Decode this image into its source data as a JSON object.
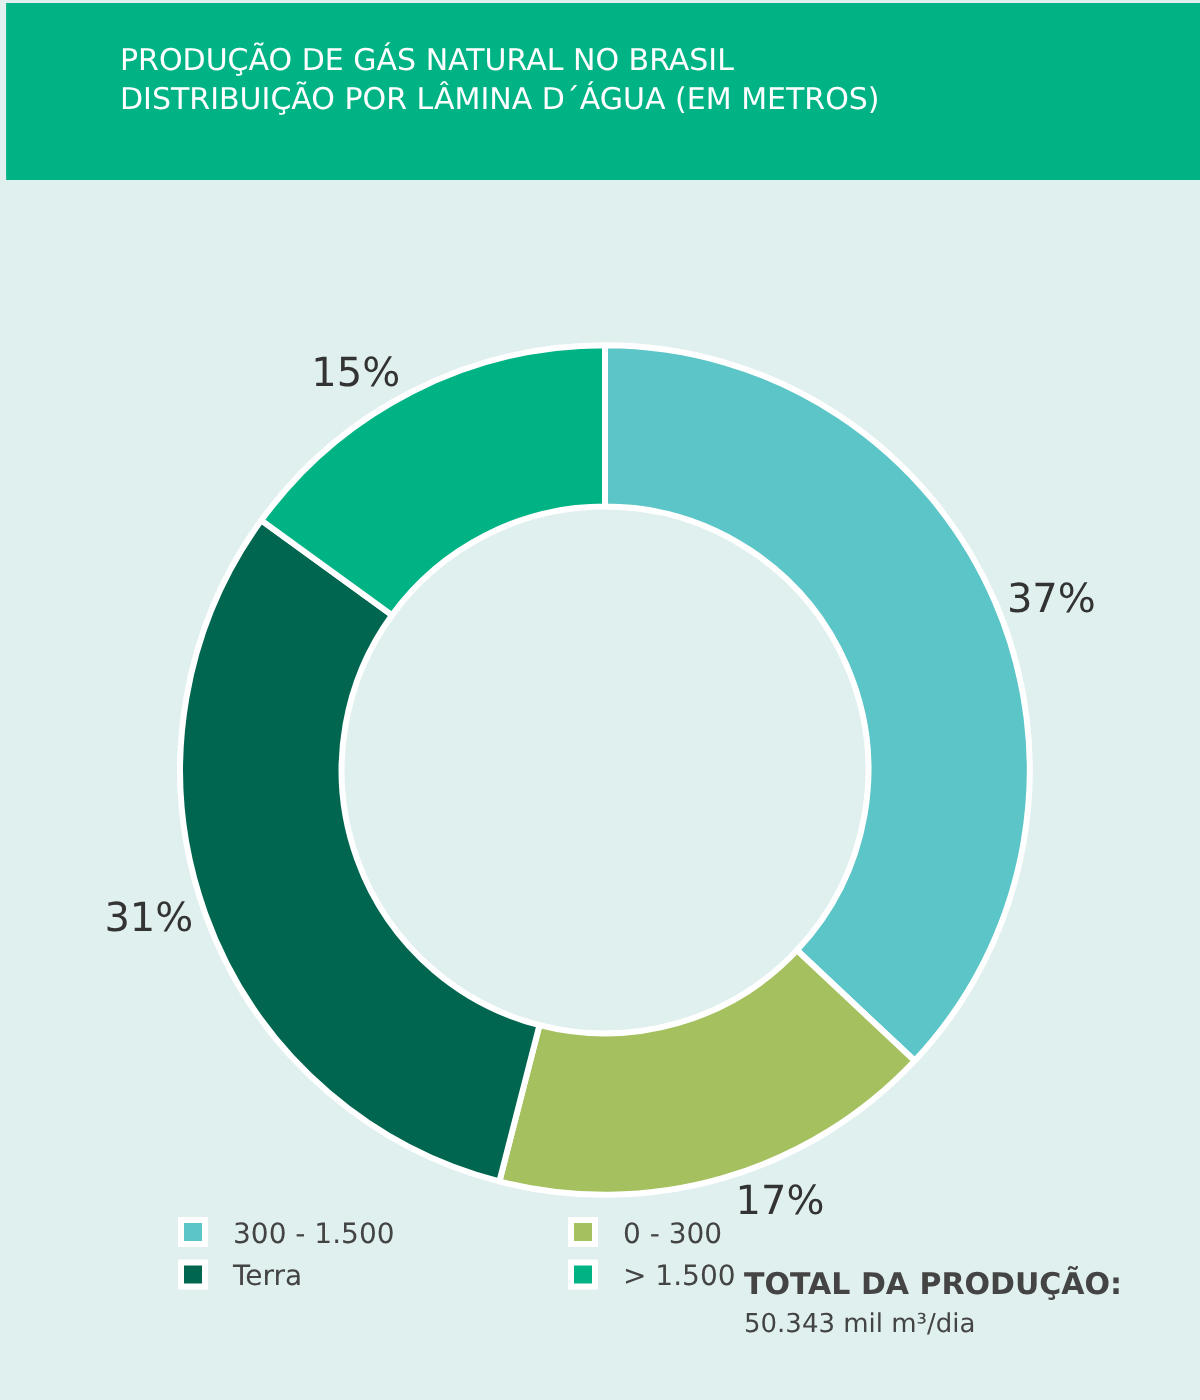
{
  "chart_data": {
    "type": "donut",
    "title": "PRODUÇÃO DE GÁS NATURAL NO BRASIL",
    "subtitle": "DISTRIBUIÇÃO POR LÂMINA D´ÁGUA (EM METROS)",
    "categories": [
      "300 - 1.500",
      "0 - 300",
      "Terra",
      "> 1.500"
    ],
    "values": [
      37,
      17,
      31,
      15
    ],
    "value_labels": [
      "37%",
      "17%",
      "31%",
      "15%"
    ],
    "colors": [
      "#5bc5c8",
      "#a5c05e",
      "#00664f",
      "#00b385"
    ],
    "legend": "bottom",
    "annotations": [
      "TOTAL DA PRODUÇÃO:",
      "50.343 mil m³/dia"
    ]
  }
}
